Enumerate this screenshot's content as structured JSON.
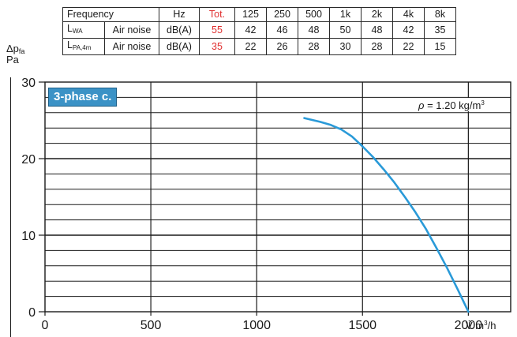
{
  "noise_table": {
    "header": {
      "label": "Frequency",
      "unit": "Hz",
      "total": "Tot.",
      "bands": [
        "125",
        "250",
        "500",
        "1k",
        "2k",
        "4k",
        "8k"
      ]
    },
    "rows": [
      {
        "label_main": "L",
        "label_sub": "WA",
        "desc": "Air noise",
        "unit": "dB(A)",
        "total": "55",
        "values": [
          "42",
          "46",
          "48",
          "50",
          "48",
          "42",
          "35"
        ]
      },
      {
        "label_main": "L",
        "label_sub": "PA,4m",
        "desc": "Air noise",
        "unit": "dB(A)",
        "total": "35",
        "values": [
          "22",
          "26",
          "28",
          "30",
          "28",
          "22",
          "15"
        ]
      }
    ],
    "total_color": "#e03030"
  },
  "chart_data": {
    "type": "line",
    "ylabel_main": "Δp",
    "ylabel_sub": "fa",
    "yunit": "Pa",
    "xlabel_prefix": "V̇",
    "xlabel_unit": "m",
    "xlabel_exp": "3",
    "xlabel_suffix": "/h",
    "xlim": [
      0,
      2200
    ],
    "ylim": [
      0,
      30
    ],
    "xticks": [
      "0",
      "500",
      "1000",
      "1500",
      "2000"
    ],
    "yticks": [
      "0",
      "10",
      "20",
      "30"
    ],
    "grid": true,
    "series": [
      {
        "color": "#2a9ad8",
        "x": [
          1225,
          1300,
          1350,
          1400,
          1450,
          1500,
          1550,
          1600,
          1650,
          1700,
          1750,
          1800,
          1850,
          1900,
          1950,
          2000
        ],
        "y": [
          25.3,
          24.8,
          24.4,
          23.8,
          22.9,
          21.6,
          20.2,
          18.6,
          16.9,
          15.0,
          13.0,
          10.8,
          8.3,
          5.7,
          2.9,
          0
        ]
      }
    ],
    "badge": "3-phase c.",
    "badge_color": "#3b92c6",
    "density_symbol": "ρ",
    "density_value": " = 1.20 kg/m",
    "density_exp": "3"
  }
}
